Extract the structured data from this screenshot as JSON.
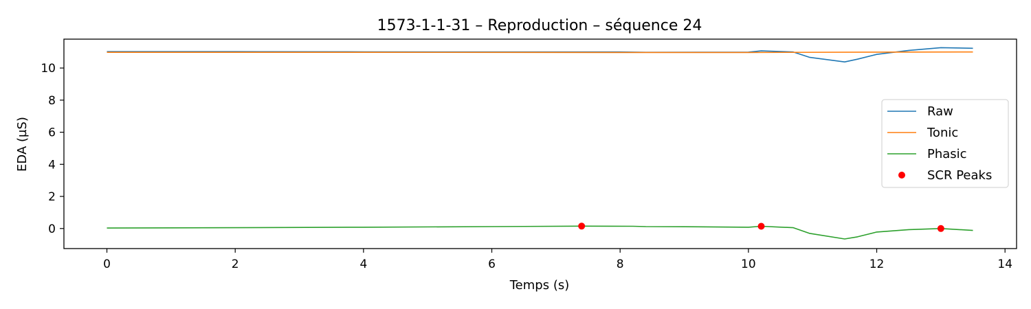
{
  "chart_data": {
    "type": "line",
    "title": "1573-1-1-31 – Reproduction – séquence 24",
    "xlabel": "Temps (s)",
    "ylabel": "EDA (µS)",
    "xlim": [
      -0.67,
      14.18
    ],
    "ylim": [
      -1.25,
      11.8
    ],
    "xticks": [
      0,
      2,
      4,
      6,
      8,
      10,
      12,
      14
    ],
    "yticks": [
      0,
      2,
      4,
      6,
      8,
      10
    ],
    "grid": false,
    "legend_position": "center-right",
    "series": [
      {
        "name": "Raw",
        "color": "#1f77b4",
        "kind": "line",
        "x": [
          0,
          2,
          4,
          6,
          8,
          8.4,
          10,
          10.2,
          10.7,
          10.95,
          11.5,
          11.7,
          12,
          12.5,
          13,
          13.5
        ],
        "y": [
          11.02,
          11.02,
          11.01,
          11.0,
          11.0,
          10.98,
          10.99,
          11.07,
          11.0,
          10.67,
          10.38,
          10.55,
          10.85,
          11.1,
          11.27,
          11.23
        ]
      },
      {
        "name": "Tonic",
        "color": "#ff7f0e",
        "kind": "line",
        "x": [
          0,
          4,
          8,
          10,
          12,
          13.5
        ],
        "y": [
          10.98,
          10.98,
          10.97,
          10.97,
          10.99,
          11.0
        ]
      },
      {
        "name": "Phasic",
        "color": "#2ca02c",
        "kind": "line",
        "x": [
          0,
          2,
          4,
          6,
          7.4,
          8.2,
          8.4,
          9,
          10,
          10.2,
          10.7,
          10.95,
          11.5,
          11.7,
          12,
          12.5,
          13,
          13.5
        ],
        "y": [
          0.03,
          0.05,
          0.08,
          0.12,
          0.15,
          0.14,
          0.12,
          0.11,
          0.08,
          0.14,
          0.05,
          -0.3,
          -0.65,
          -0.52,
          -0.22,
          -0.07,
          0.0,
          -0.12
        ]
      },
      {
        "name": "SCR Peaks",
        "color": "#ff0000",
        "kind": "scatter",
        "x": [
          7.4,
          10.2,
          13.0
        ],
        "y": [
          0.15,
          0.14,
          0.0
        ]
      }
    ]
  }
}
